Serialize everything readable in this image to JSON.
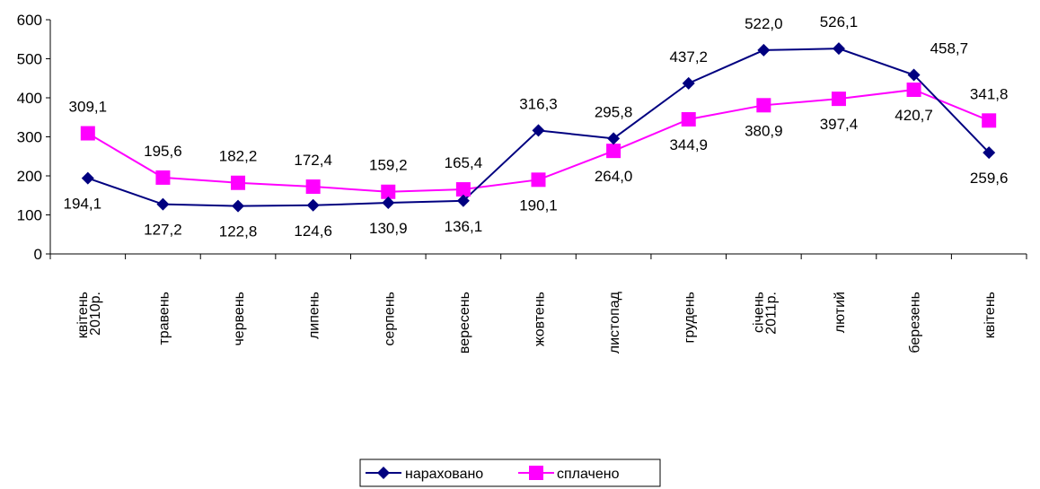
{
  "chart_data": {
    "type": "line",
    "title": "",
    "xlabel": "",
    "ylabel": "",
    "ylim": [
      0,
      600
    ],
    "yticks": [
      "0",
      "100",
      "200",
      "300",
      "400",
      "500",
      "600"
    ],
    "grid": false,
    "legend_position": "bottom",
    "categories": [
      [
        "квітень",
        "2010р."
      ],
      [
        "травень"
      ],
      [
        "червень"
      ],
      [
        "липень"
      ],
      [
        "серпень"
      ],
      [
        "вересень"
      ],
      [
        "жовтень"
      ],
      [
        "листопад"
      ],
      [
        "грудень"
      ],
      [
        "січень",
        "2011р."
      ],
      [
        "лютий"
      ],
      [
        "березень"
      ],
      [
        "квітень"
      ]
    ],
    "series": [
      {
        "name": "нараховано",
        "color": "#000080",
        "marker": "diamond",
        "values": [
          194.1,
          127.2,
          122.8,
          124.6,
          130.9,
          136.1,
          316.3,
          295.8,
          437.2,
          522.0,
          526.1,
          458.7,
          259.6
        ],
        "labels": [
          "194,1",
          "127,2",
          "122,8",
          "124,6",
          "130,9",
          "136,1",
          "316,3",
          "295,8",
          "437,2",
          "522,0",
          "526,1",
          "458,7",
          "259,6"
        ],
        "label_pos": [
          "below",
          "below",
          "below",
          "below",
          "below",
          "below",
          "above",
          "above",
          "above",
          "above",
          "above",
          "above",
          "below"
        ]
      },
      {
        "name": "сплачено",
        "color": "#FF00FF",
        "marker": "square",
        "values": [
          309.1,
          195.6,
          182.2,
          172.4,
          159.2,
          165.4,
          190.1,
          264.0,
          344.9,
          380.9,
          397.4,
          420.7,
          341.8
        ],
        "labels": [
          "309,1",
          "195,6",
          "182,2",
          "172,4",
          "159,2",
          "165,4",
          "190,1",
          "264,0",
          "344,9",
          "380,9",
          "397,4",
          "420,7",
          "341,8"
        ],
        "label_pos": [
          "above",
          "above",
          "above",
          "above",
          "above",
          "above",
          "below",
          "below",
          "below",
          "below",
          "below",
          "below",
          "above"
        ]
      }
    ]
  }
}
